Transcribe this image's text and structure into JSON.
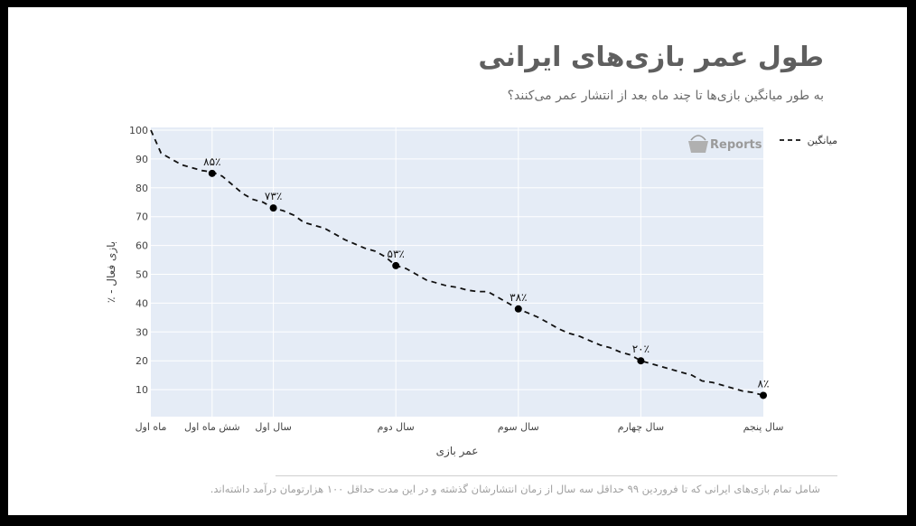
{
  "header": {
    "title": "طول عمر بازی‌های ایرانی",
    "subtitle": "به طور میانگین بازی‌ها تا چند ماه بعد از انتشار عمر می‌کنند؟"
  },
  "footnote": "شامل تمام بازی‌های ایرانی که تا فروردین ۹۹ حداقل سه سال از زمان انتشارشان گذشته و در این مدت حداقل ۱۰۰ هزارتومان درآمد داشته‌اند.",
  "watermark": {
    "text": "Reports",
    "icon": "basket-logo-icon"
  },
  "colors": {
    "plot_bg": "#e5ecf6",
    "grid": "#ffffff",
    "line": "#111111",
    "marker": "#000000"
  },
  "chart_data": {
    "type": "line",
    "xlabel": "عمر بازی",
    "ylabel": "٪ - بازی فعال",
    "xlim": [
      0,
      60
    ],
    "ylim": [
      0,
      100
    ],
    "grid": true,
    "legend_position": "top-right",
    "y_ticks": [
      10,
      20,
      30,
      40,
      50,
      60,
      70,
      80,
      90,
      100
    ],
    "x_ticks": [
      {
        "x": 0,
        "label": "ماه اول"
      },
      {
        "x": 6,
        "label": "شش ماه اول"
      },
      {
        "x": 12,
        "label": "سال اول"
      },
      {
        "x": 24,
        "label": "سال دوم"
      },
      {
        "x": 36,
        "label": "سال سوم"
      },
      {
        "x": 48,
        "label": "سال چهارم"
      },
      {
        "x": 60,
        "label": "سال پنجم"
      }
    ],
    "series": [
      {
        "name": "میانگین",
        "style": "dashed",
        "x": [
          0,
          1,
          2,
          3,
          4,
          5,
          6,
          7,
          8,
          9,
          10,
          11,
          12,
          13,
          14,
          15,
          16,
          17,
          18,
          19,
          20,
          21,
          22,
          23,
          24,
          25,
          26,
          27,
          28,
          29,
          30,
          31,
          32,
          33,
          34,
          35,
          36,
          37,
          38,
          39,
          40,
          41,
          42,
          43,
          44,
          45,
          46,
          47,
          48,
          49,
          50,
          51,
          52,
          53,
          54,
          55,
          56,
          57,
          58,
          59,
          60
        ],
        "y": [
          100,
          92,
          90,
          88,
          87,
          86,
          85.5,
          84,
          81,
          78,
          76,
          75,
          73,
          72,
          70.5,
          68,
          67,
          66,
          64,
          62,
          60.5,
          59,
          58,
          56,
          53,
          52,
          50,
          48,
          47,
          46,
          45.5,
          44.5,
          44,
          44,
          42,
          40,
          38,
          36.5,
          35,
          33,
          31,
          29.5,
          28.5,
          27,
          25.5,
          24.5,
          23,
          22,
          20,
          19,
          18,
          17,
          16,
          15,
          13,
          12.5,
          11.5,
          10.5,
          9.5,
          9,
          8
        ]
      }
    ],
    "markers": [
      {
        "x": 6,
        "y": 85,
        "label": "۸۵٪"
      },
      {
        "x": 12,
        "y": 73,
        "label": "۷۳٪"
      },
      {
        "x": 24,
        "y": 53,
        "label": "۵۳٪"
      },
      {
        "x": 36,
        "y": 38,
        "label": "۳۸٪"
      },
      {
        "x": 48,
        "y": 20,
        "label": "۲۰٪"
      },
      {
        "x": 60,
        "y": 8,
        "label": "۸٪"
      }
    ]
  }
}
